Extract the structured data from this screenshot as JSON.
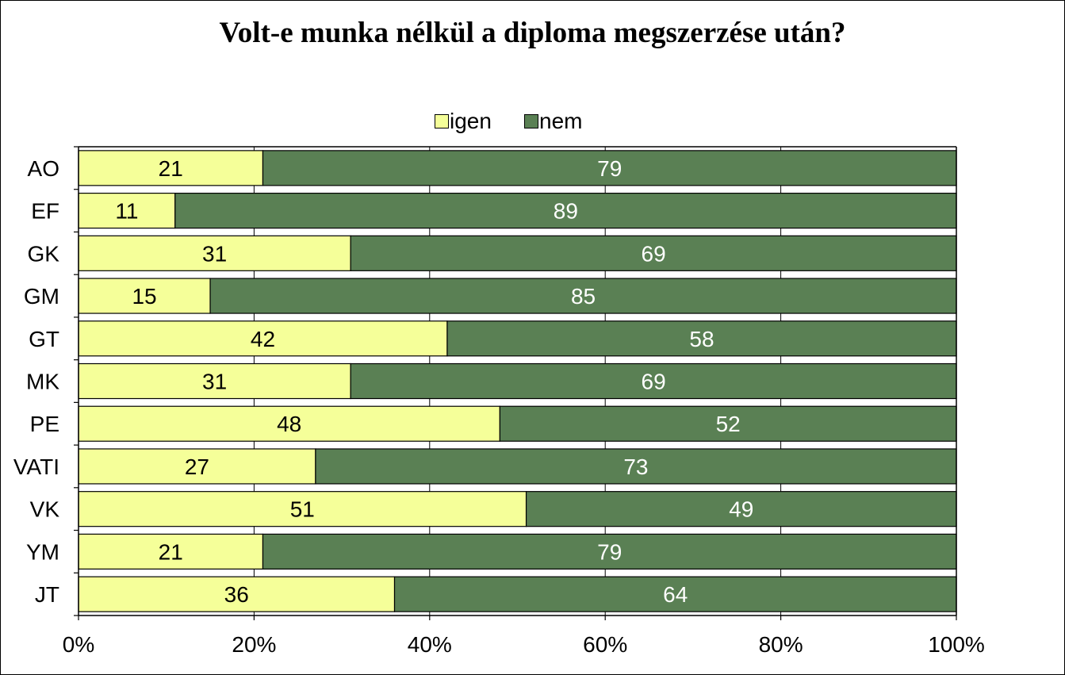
{
  "chart_data": {
    "type": "bar",
    "orientation": "horizontal",
    "stacked": "percent",
    "title": "Volt-e munka nélkül a diploma megszerzése után?",
    "categories": [
      "AO",
      "EF",
      "GK",
      "GM",
      "GT",
      "MK",
      "PE",
      "VATI",
      "VK",
      "YM",
      "JT"
    ],
    "series": [
      {
        "name": "igen",
        "color": "#f5ff99",
        "label_color": "#000000",
        "values": [
          21,
          11,
          31,
          15,
          42,
          31,
          48,
          27,
          51,
          21,
          36
        ]
      },
      {
        "name": "nem",
        "color": "#5a8054",
        "label_color": "#ffffff",
        "values": [
          79,
          89,
          69,
          85,
          58,
          69,
          52,
          73,
          49,
          79,
          64
        ]
      }
    ],
    "xlim": [
      0,
      100
    ],
    "x_ticks": [
      "0%",
      "20%",
      "40%",
      "60%",
      "80%",
      "100%"
    ],
    "x_tick_values": [
      0,
      20,
      40,
      60,
      80,
      100
    ],
    "grid": true,
    "legend_position": "top"
  }
}
